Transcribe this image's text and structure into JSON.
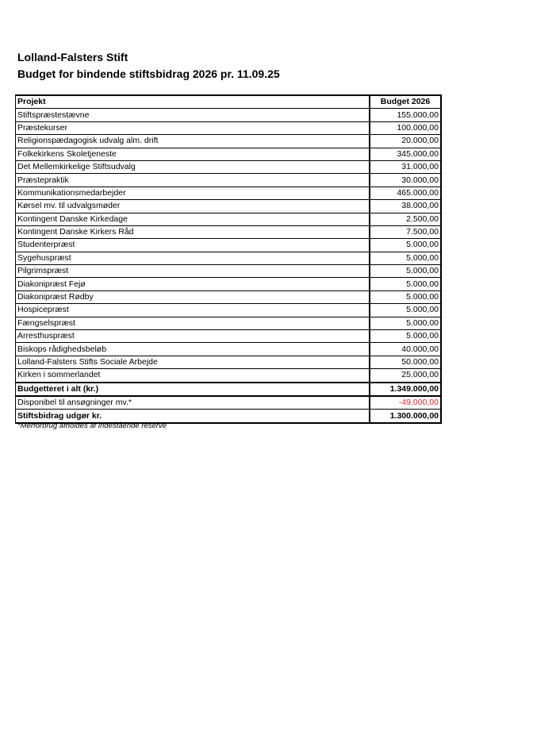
{
  "title": "Lolland-Falsters Stift",
  "subtitle": "Budget for bindende stiftsbidrag 2026 pr. 11.09.25",
  "table": {
    "headers": [
      "Projekt",
      "Budget 2026"
    ],
    "rows": [
      [
        "Stiftspræstestævne",
        "155.000,00"
      ],
      [
        "Præstekurser",
        "100.000,00"
      ],
      [
        "Religionspædagogisk udvalg alm. drift",
        "20.000,00"
      ],
      [
        "Folkekirkens Skoletjeneste",
        "345.000,00"
      ],
      [
        "Det Mellemkirkelige Stiftsudvalg",
        "31.000,00"
      ],
      [
        "Præstepraktik",
        "30.000,00"
      ],
      [
        "Kommunikationsmedarbejder",
        "465.000,00"
      ],
      [
        "Kørsel mv. til udvalgsmøder",
        "38.000,00"
      ],
      [
        "Kontingent Danske Kirkedage",
        "2.500,00"
      ],
      [
        "Kontingent Danske Kirkers Råd",
        "7.500,00"
      ],
      [
        "Studenterpræst",
        "5.000,00"
      ],
      [
        "Sygehuspræst",
        "5.000,00"
      ],
      [
        "Pilgrimspræst",
        "5.000,00"
      ],
      [
        "Diakonipræst Fejø",
        "5.000,00"
      ],
      [
        "Diakonipræst Rødby",
        "5.000,00"
      ],
      [
        "Hospicepræst",
        "5.000,00"
      ],
      [
        "Fængselspræst",
        "5.000,00"
      ],
      [
        "Arresthuspræst",
        "5.000,00"
      ],
      [
        "Biskops rådighedsbeløb",
        "40.000,00"
      ],
      [
        "Lolland-Falsters Stifts Sociale Arbejde",
        "50.000,00"
      ],
      [
        "Kirken i sommerlandet",
        "25.000,00"
      ]
    ],
    "total": [
      "Budgetteret i alt (kr.)",
      "1.349.000,00"
    ],
    "available": [
      "Disponibel til ansøgninger mv.*",
      "-49.000,00"
    ],
    "contribution": [
      "Stiftsbidrag udgør kr.",
      "1.300.000,00"
    ]
  },
  "note": "*Merforbrug afholdes af indestående reserve",
  "colors": {
    "negative": "#e8252b"
  }
}
